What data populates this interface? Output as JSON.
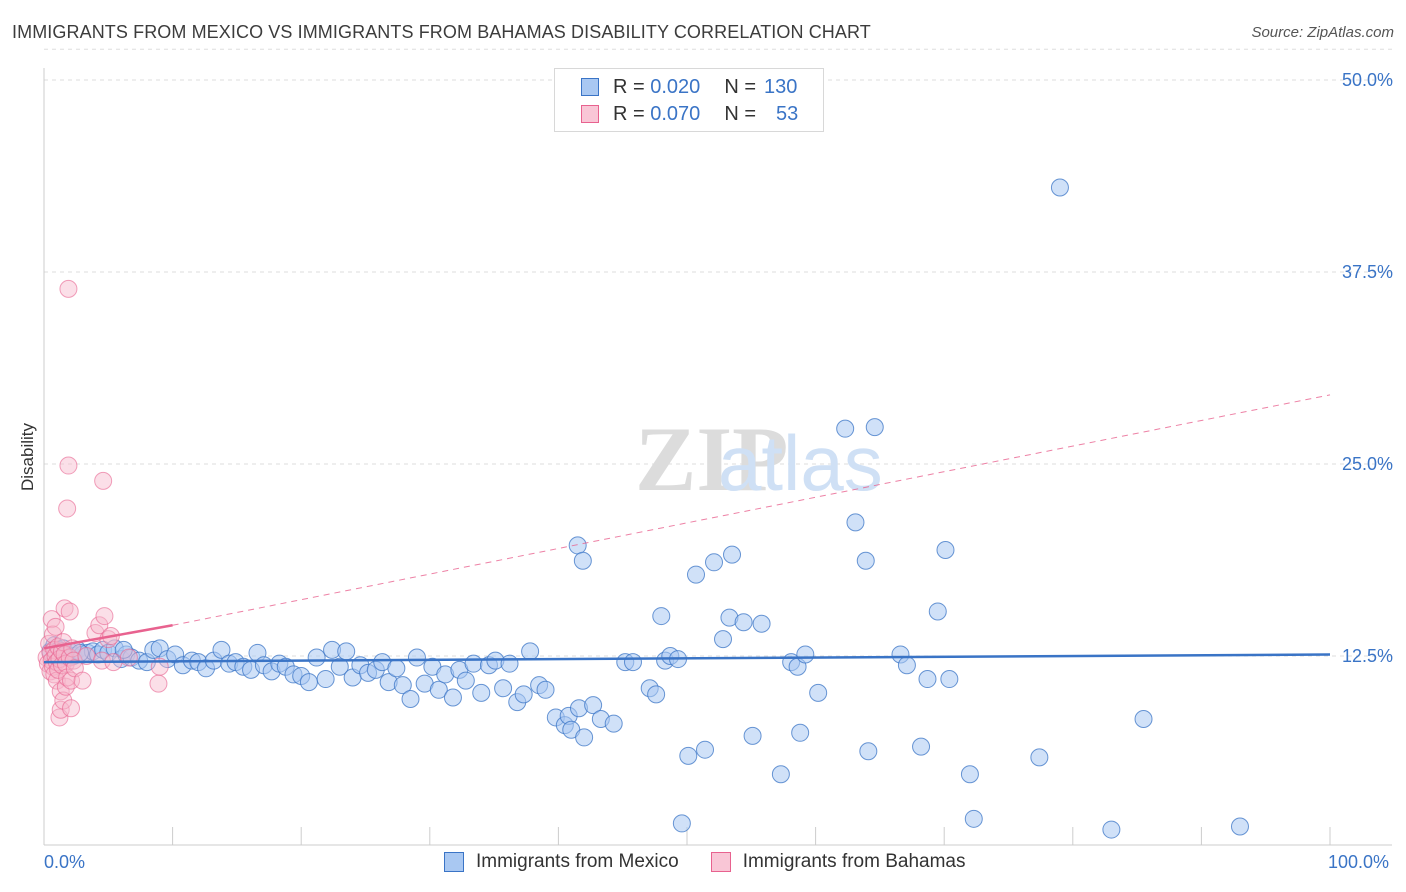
{
  "title": "IMMIGRANTS FROM MEXICO VS IMMIGRANTS FROM BAHAMAS DISABILITY CORRELATION CHART",
  "source": "Source: ZipAtlas.com",
  "watermark": {
    "zip": "ZIP",
    "atlas": "atlas"
  },
  "colors": {
    "blue": "#3a74c6",
    "blue_fill": "#a9c8f2",
    "pink": "#e8628f",
    "pink_fill": "#f6b7cb",
    "grid": "#dddddd",
    "axis_text": "#3a74c6"
  },
  "legend_top": {
    "rows": [
      {
        "r_label": "R =",
        "r_value": "0.020",
        "n_label": "N =",
        "n_value": "130"
      },
      {
        "r_label": "R =",
        "r_value": "0.070",
        "n_label": "N =",
        "n_value": "53"
      }
    ]
  },
  "legend_bottom": [
    "Immigrants from Mexico",
    "Immigrants from Bahamas"
  ],
  "chart_data": {
    "type": "scatter",
    "title": "IMMIGRANTS FROM MEXICO VS IMMIGRANTS FROM BAHAMAS DISABILITY CORRELATION CHART",
    "xlabel": "",
    "ylabel": "Disability",
    "xlim": [
      0,
      100
    ],
    "ylim": [
      0,
      52
    ],
    "x_tick_labels": [
      "0.0%",
      "100.0%"
    ],
    "y_ticks": [
      12.5,
      25.0,
      37.5,
      50.0
    ],
    "y_tick_labels": [
      "12.5%",
      "25.0%",
      "37.5%",
      "50.0%"
    ],
    "grid": true,
    "legend_position": "top-center",
    "series": [
      {
        "name": "Immigrants from Mexico",
        "color": "#3a74c6",
        "trend": {
          "x": [
            0,
            100
          ],
          "y": [
            12.1,
            12.6
          ],
          "style": "solid"
        },
        "points": [
          [
            0.5,
            12.8
          ],
          [
            0.8,
            13.2
          ],
          [
            1.0,
            12.6
          ],
          [
            1.2,
            12.9
          ],
          [
            1.5,
            13.0
          ],
          [
            1.8,
            12.4
          ],
          [
            2.0,
            12.8
          ],
          [
            2.3,
            12.5
          ],
          [
            2.6,
            12.9
          ],
          [
            3.0,
            12.6
          ],
          [
            3.4,
            12.7
          ],
          [
            3.8,
            12.8
          ],
          [
            4.2,
            12.6
          ],
          [
            4.6,
            12.9
          ],
          [
            5.0,
            12.7
          ],
          [
            5.5,
            13.0
          ],
          [
            6.0,
            12.3
          ],
          [
            6.4,
            12.6
          ],
          [
            6.8,
            12.4
          ],
          [
            7.4,
            12.2
          ],
          [
            8.0,
            12.1
          ],
          [
            8.5,
            12.9
          ],
          [
            9.0,
            13.0
          ],
          [
            9.6,
            12.3
          ],
          [
            10.2,
            12.6
          ],
          [
            10.8,
            11.9
          ],
          [
            11.5,
            12.2
          ],
          [
            12.0,
            12.1
          ],
          [
            12.6,
            11.7
          ],
          [
            13.2,
            12.2
          ],
          [
            13.8,
            12.9
          ],
          [
            14.4,
            12.0
          ],
          [
            14.9,
            12.1
          ],
          [
            15.5,
            11.8
          ],
          [
            16.1,
            11.6
          ],
          [
            16.6,
            12.7
          ],
          [
            17.1,
            11.9
          ],
          [
            17.7,
            11.5
          ],
          [
            18.3,
            12.0
          ],
          [
            18.8,
            11.8
          ],
          [
            19.4,
            11.3
          ],
          [
            20.0,
            11.2
          ],
          [
            20.6,
            10.8
          ],
          [
            21.2,
            12.4
          ],
          [
            21.9,
            11.0
          ],
          [
            22.4,
            12.9
          ],
          [
            23.0,
            11.8
          ],
          [
            23.5,
            12.8
          ],
          [
            24.0,
            11.1
          ],
          [
            24.6,
            11.9
          ],
          [
            25.2,
            11.4
          ],
          [
            25.8,
            11.6
          ],
          [
            26.3,
            12.1
          ],
          [
            26.8,
            10.8
          ],
          [
            27.4,
            11.7
          ],
          [
            27.9,
            10.6
          ],
          [
            28.5,
            9.7
          ],
          [
            29.0,
            12.4
          ],
          [
            29.6,
            10.7
          ],
          [
            30.2,
            11.8
          ],
          [
            30.7,
            10.3
          ],
          [
            31.2,
            11.3
          ],
          [
            31.8,
            9.8
          ],
          [
            32.3,
            11.6
          ],
          [
            32.8,
            10.9
          ],
          [
            33.4,
            12.0
          ],
          [
            34.0,
            10.1
          ],
          [
            34.6,
            11.9
          ],
          [
            35.1,
            12.2
          ],
          [
            35.7,
            10.4
          ],
          [
            36.2,
            12.0
          ],
          [
            36.8,
            9.5
          ],
          [
            37.3,
            10.0
          ],
          [
            37.8,
            12.8
          ],
          [
            38.5,
            10.6
          ],
          [
            39.0,
            10.3
          ],
          [
            39.8,
            8.5
          ],
          [
            40.5,
            8.0
          ],
          [
            40.8,
            8.6
          ],
          [
            41.0,
            7.7
          ],
          [
            41.6,
            9.1
          ],
          [
            42.0,
            7.2
          ],
          [
            42.7,
            9.3
          ],
          [
            43.3,
            8.4
          ],
          [
            41.5,
            19.7
          ],
          [
            41.9,
            18.7
          ],
          [
            44.3,
            8.1
          ],
          [
            45.2,
            12.1
          ],
          [
            45.8,
            12.1
          ],
          [
            47.1,
            10.4
          ],
          [
            47.6,
            10.0
          ],
          [
            48.0,
            15.1
          ],
          [
            48.3,
            12.2
          ],
          [
            48.7,
            12.5
          ],
          [
            49.3,
            12.3
          ],
          [
            50.1,
            6.0
          ],
          [
            49.6,
            1.6
          ],
          [
            50.7,
            17.8
          ],
          [
            51.4,
            6.4
          ],
          [
            52.1,
            18.6
          ],
          [
            52.8,
            13.6
          ],
          [
            53.5,
            19.1
          ],
          [
            53.3,
            15.0
          ],
          [
            54.4,
            14.7
          ],
          [
            55.1,
            7.3
          ],
          [
            55.8,
            14.6
          ],
          [
            57.3,
            4.8
          ],
          [
            58.1,
            12.1
          ],
          [
            58.6,
            11.8
          ],
          [
            59.2,
            12.6
          ],
          [
            58.8,
            7.5
          ],
          [
            60.2,
            10.1
          ],
          [
            62.3,
            27.3
          ],
          [
            63.1,
            21.2
          ],
          [
            64.6,
            27.4
          ],
          [
            64.1,
            6.3
          ],
          [
            63.9,
            18.7
          ],
          [
            66.6,
            12.6
          ],
          [
            67.1,
            11.9
          ],
          [
            68.2,
            6.6
          ],
          [
            68.7,
            11.0
          ],
          [
            69.5,
            15.4
          ],
          [
            70.1,
            19.4
          ],
          [
            70.4,
            11.0
          ],
          [
            72.3,
            1.9
          ],
          [
            72.0,
            4.8
          ],
          [
            77.4,
            5.9
          ],
          [
            79.0,
            43.0
          ],
          [
            83.0,
            1.2
          ],
          [
            85.5,
            8.4
          ],
          [
            93.0,
            1.4
          ],
          [
            1.6,
            12.5
          ],
          [
            2.8,
            12.7
          ],
          [
            6.2,
            12.9
          ]
        ]
      },
      {
        "name": "Immigrants from Bahamas",
        "color": "#e8628f",
        "trend": {
          "x": [
            0,
            10
          ],
          "y": [
            13.0,
            14.5
          ],
          "style": "solid",
          "extended": {
            "x": [
              10,
              100
            ],
            "y": [
              14.5,
              29.5
            ],
            "style": "dashed"
          }
        },
        "points": [
          [
            0.2,
            12.4
          ],
          [
            0.3,
            12.0
          ],
          [
            0.4,
            13.3
          ],
          [
            0.5,
            12.7
          ],
          [
            0.5,
            11.5
          ],
          [
            0.6,
            14.9
          ],
          [
            0.6,
            12.2
          ],
          [
            0.7,
            11.8
          ],
          [
            0.7,
            13.9
          ],
          [
            0.8,
            12.9
          ],
          [
            0.8,
            11.3
          ],
          [
            0.9,
            12.5
          ],
          [
            0.9,
            14.4
          ],
          [
            1.0,
            12.1
          ],
          [
            1.0,
            10.9
          ],
          [
            1.1,
            11.6
          ],
          [
            1.1,
            13.1
          ],
          [
            1.2,
            12.3
          ],
          [
            1.2,
            8.5
          ],
          [
            1.3,
            9.0
          ],
          [
            1.3,
            10.2
          ],
          [
            1.4,
            12.8
          ],
          [
            1.4,
            11.9
          ],
          [
            1.5,
            13.4
          ],
          [
            1.5,
            9.6
          ],
          [
            1.6,
            12.6
          ],
          [
            1.6,
            15.6
          ],
          [
            1.7,
            10.5
          ],
          [
            1.7,
            12.0
          ],
          [
            1.8,
            11.1
          ],
          [
            1.8,
            22.1
          ],
          [
            1.9,
            36.4
          ],
          [
            1.9,
            24.9
          ],
          [
            2.0,
            12.4
          ],
          [
            2.0,
            15.4
          ],
          [
            2.1,
            9.1
          ],
          [
            2.1,
            10.9
          ],
          [
            2.2,
            13.0
          ],
          [
            2.3,
            12.2
          ],
          [
            2.4,
            11.7
          ],
          [
            3.0,
            10.9
          ],
          [
            3.3,
            12.5
          ],
          [
            4.0,
            14.0
          ],
          [
            4.3,
            14.5
          ],
          [
            4.5,
            12.2
          ],
          [
            4.6,
            23.9
          ],
          [
            4.7,
            15.1
          ],
          [
            5.0,
            13.6
          ],
          [
            5.2,
            13.8
          ],
          [
            5.4,
            12.1
          ],
          [
            6.6,
            12.4
          ],
          [
            9.0,
            11.8
          ],
          [
            8.9,
            10.7
          ]
        ]
      }
    ]
  }
}
